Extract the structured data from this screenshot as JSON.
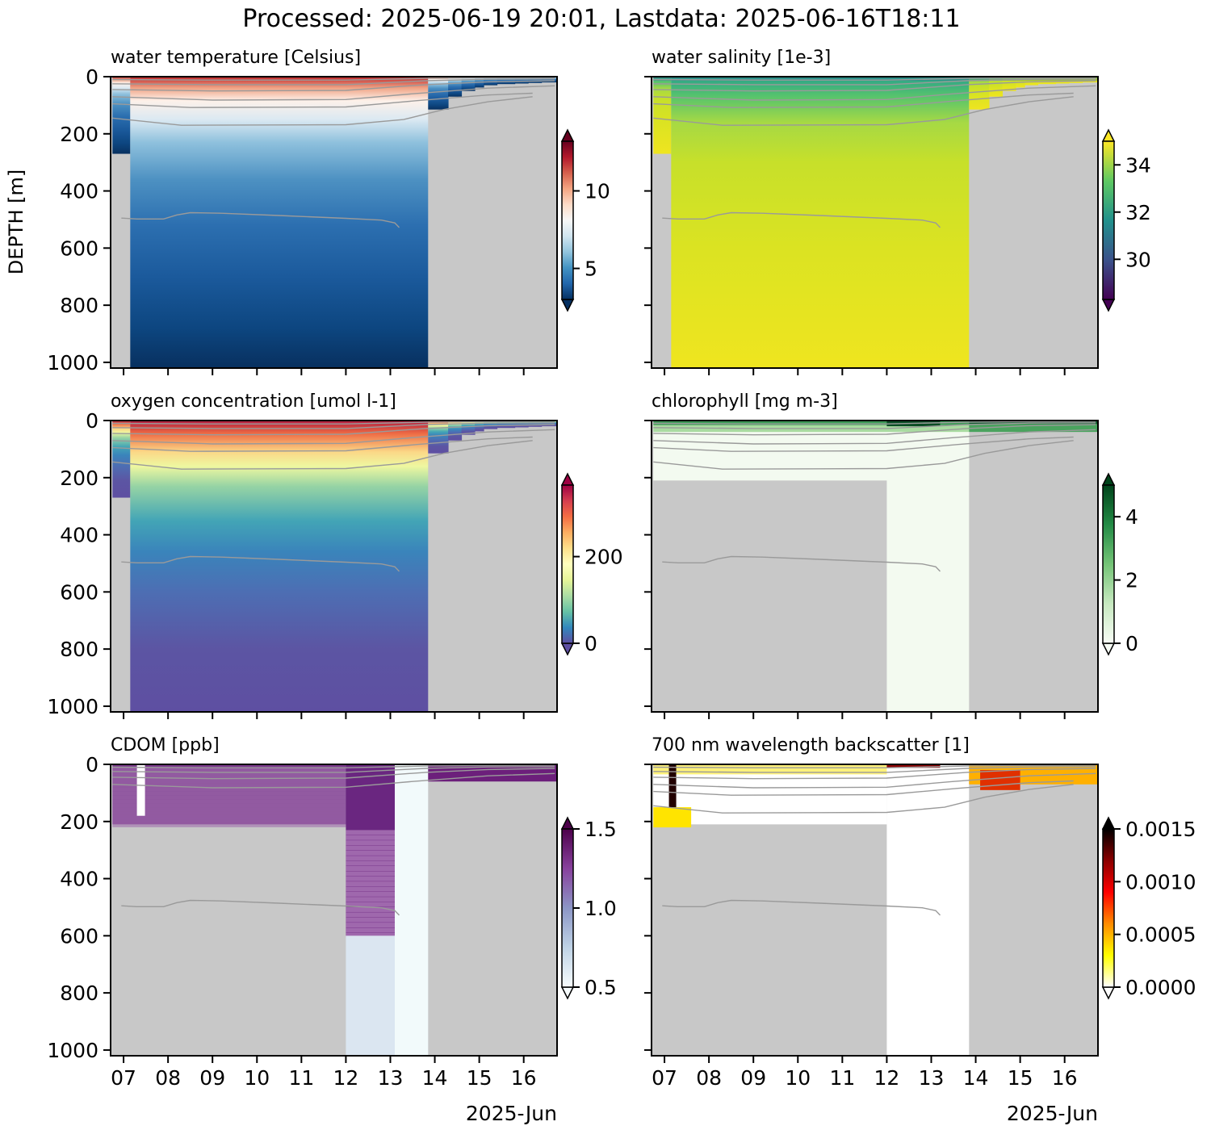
{
  "figure": {
    "title": "Processed: 2025-06-19 20:01, Lastdata: 2025-06-16T18:11",
    "ylabel": "DEPTH [m]",
    "x_ticks": [
      "07",
      "08",
      "09",
      "10",
      "11",
      "12",
      "13",
      "14",
      "15",
      "16"
    ],
    "x_date_label": "2025-Jun",
    "y_ticks": [
      "0",
      "200",
      "400",
      "600",
      "800",
      "1000"
    ]
  },
  "chart_data": [
    {
      "type": "heatmap",
      "title": "water temperature [Celsius]",
      "x_range": [
        "2025-06-06T17:00",
        "2025-06-16T18:00"
      ],
      "y_range": [
        1020,
        0
      ],
      "data_end_day": 13.85,
      "colormap": "RdBu_r",
      "colorbar": {
        "min": 3,
        "max": 13.2,
        "ticks": [
          5,
          10
        ],
        "tick_labels": [
          "5",
          "10"
        ],
        "extend": "both"
      },
      "isotherm_depths_m": [
        10,
        25,
        45,
        70,
        95,
        165,
        500
      ]
    },
    {
      "type": "heatmap",
      "title": "water salinity [1e-3]",
      "x_range": [
        "2025-06-06T17:00",
        "2025-06-16T18:00"
      ],
      "y_range": [
        1020,
        0
      ],
      "data_end_day": 13.85,
      "colormap": "viridis",
      "colorbar": {
        "min": 28.3,
        "max": 35,
        "ticks": [
          30,
          32,
          34
        ],
        "tick_labels": [
          "30",
          "32",
          "34"
        ],
        "extend": "both"
      }
    },
    {
      "type": "heatmap",
      "title": "oxygen concentration [umol l-1]",
      "x_range": [
        "2025-06-06T17:00",
        "2025-06-16T18:00"
      ],
      "y_range": [
        1020,
        0
      ],
      "data_end_day": 13.85,
      "colormap": "Spectral_r",
      "colorbar": {
        "min": 0,
        "max": 365,
        "ticks": [
          0,
          200
        ],
        "tick_labels": [
          "0",
          "200"
        ],
        "extend": "both"
      }
    },
    {
      "type": "heatmap",
      "title": "chlorophyll [mg m-3]",
      "x_range": [
        "2025-06-06T17:00",
        "2025-06-16T18:00"
      ],
      "y_range": [
        1020,
        0
      ],
      "colormap": "Greens",
      "colorbar": {
        "min": 0,
        "max": 5,
        "ticks": [
          0,
          2,
          4
        ],
        "tick_labels": [
          "0",
          "2",
          "4"
        ],
        "extend": "both"
      }
    },
    {
      "type": "heatmap",
      "title": "CDOM [ppb]",
      "x_range": [
        "2025-06-06T17:00",
        "2025-06-16T18:00"
      ],
      "y_range": [
        1020,
        0
      ],
      "colormap": "BuPu",
      "colorbar": {
        "min": 0.5,
        "max": 1.5,
        "ticks": [
          0.5,
          1.0,
          1.5
        ],
        "tick_labels": [
          "0.5",
          "1.0",
          "1.5"
        ],
        "extend": "both"
      }
    },
    {
      "type": "heatmap",
      "title": "700 nm wavelength backscatter [1]",
      "x_range": [
        "2025-06-06T17:00",
        "2025-06-16T18:00"
      ],
      "y_range": [
        1020,
        0
      ],
      "colormap": "hot_r",
      "colorbar": {
        "min": 0,
        "max": 0.0015,
        "ticks": [
          0,
          0.0005,
          0.001,
          0.0015
        ],
        "tick_labels": [
          "0.0000",
          "0.0005",
          "0.0010",
          "0.0015"
        ],
        "extend": "both"
      }
    }
  ],
  "colors": {
    "no_data": "#c8c8c8",
    "contour": "#9a9a9a"
  }
}
